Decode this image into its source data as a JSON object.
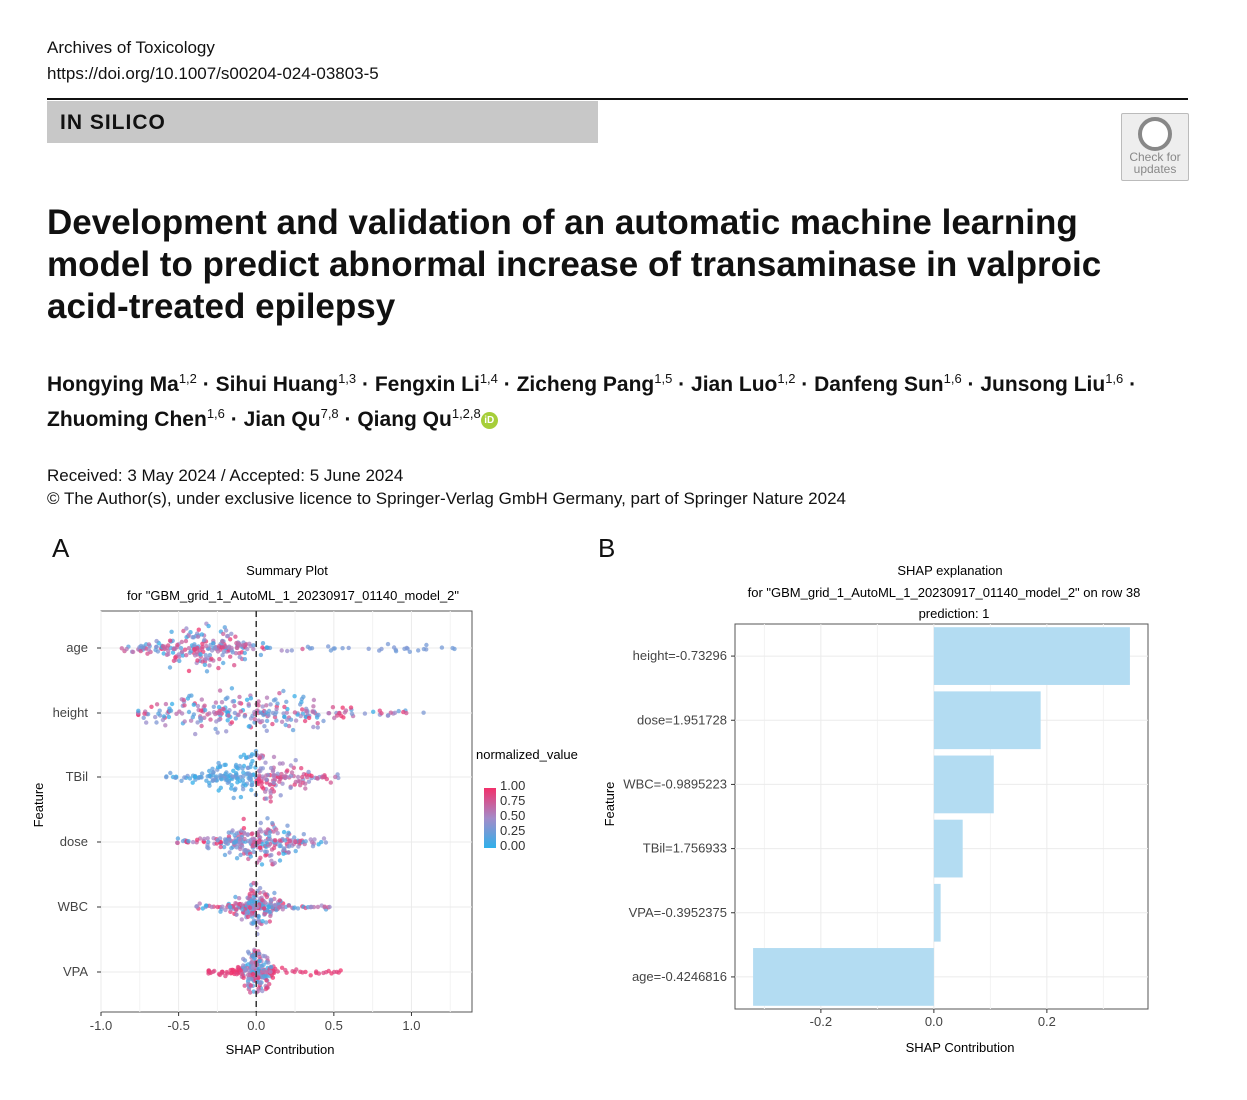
{
  "header": {
    "journal": "Archives of Toxicology",
    "doi": "https://doi.org/10.1007/s00204-024-03803-5"
  },
  "section": "IN SILICO",
  "check_updates": {
    "line1": "Check for",
    "line2": "updates"
  },
  "title": "Development and validation of an automatic machine learning model to predict abnormal increase of transaminase in valproic acid-treated epilepsy",
  "authors": [
    {
      "name": "Hongying Ma",
      "aff": "1,2"
    },
    {
      "name": "Sihui Huang",
      "aff": "1,3"
    },
    {
      "name": "Fengxin Li",
      "aff": "1,4"
    },
    {
      "name": "Zicheng Pang",
      "aff": "1,5"
    },
    {
      "name": "Jian Luo",
      "aff": "1,2"
    },
    {
      "name": "Danfeng Sun",
      "aff": "1,6"
    },
    {
      "name": "Junsong Liu",
      "aff": "1,6"
    },
    {
      "name": "Zhuoming Chen",
      "aff": "1,6"
    },
    {
      "name": "Jian Qu",
      "aff": "7,8"
    },
    {
      "name": "Qiang Qu",
      "aff": "1,2,8"
    }
  ],
  "orcid_label": "iD",
  "dates": "Received: 3 May 2024 / Accepted: 5 June 2024",
  "copyright": "© The Author(s), under exclusive licence to Springer-Verlag GmbH Germany, part of Springer Nature 2024",
  "panels": {
    "a": "A",
    "b": "B"
  },
  "chart_data": [
    {
      "type": "scatter",
      "subtype": "beeswarm",
      "title": "Summary Plot",
      "subtitle": "for \"GBM_grid_1_AutoML_1_20230917_01140_model_2\"",
      "xlabel": "SHAP Contribution",
      "ylabel": "Feature",
      "xlim": [
        -1.0,
        1.39
      ],
      "xticks": [
        "-1.0",
        "-0.5",
        "0.0",
        "0.5",
        "1.0"
      ],
      "features": [
        {
          "name": "age",
          "min": -0.88,
          "max": 1.29,
          "center": -0.35,
          "spread": 0.18,
          "tail": 0.9
        },
        {
          "name": "height",
          "min": -0.76,
          "max": 1.08,
          "center": -0.1,
          "spread": 0.35,
          "tail": 0.6
        },
        {
          "name": "TBil",
          "min": -0.58,
          "max": 0.53,
          "center": 0.0,
          "spread": 0.2,
          "tail": 0.2
        },
        {
          "name": "dose",
          "min": -0.53,
          "max": 0.45,
          "center": 0.02,
          "spread": 0.15,
          "tail": 0.2
        },
        {
          "name": "WBC",
          "min": -0.42,
          "max": 0.49,
          "center": 0.0,
          "spread": 0.08,
          "tail": 0.2
        },
        {
          "name": "VPA",
          "min": -0.32,
          "max": 0.58,
          "center": 0.0,
          "spread": 0.06,
          "tail": 0.25
        }
      ],
      "legend": {
        "title": "normalized_value",
        "labels": [
          "1.00",
          "0.75",
          "0.50",
          "0.25",
          "0.00"
        ],
        "position": "right",
        "low_color": "#2fb0ea",
        "mid_color": "#a48bc9",
        "high_color": "#f2316b"
      }
    },
    {
      "type": "bar",
      "orientation": "horizontal",
      "title": "SHAP explanation",
      "subtitle": "for \"GBM_grid_1_AutoML_1_20230917_01140_model_2\" on row 38",
      "subtitle2": "prediction: 1",
      "xlabel": "SHAP Contribution",
      "ylabel": "Feature",
      "xlim": [
        -0.352,
        0.379
      ],
      "xticks": [
        "-0.2",
        "0.0",
        "0.2"
      ],
      "categories": [
        "height=-0.73296",
        "dose=1.951728",
        "WBC=-0.9895223",
        "TBil=1.756933",
        "VPA=-0.3952375",
        "age=-0.4246816"
      ],
      "values": [
        0.347,
        0.189,
        0.106,
        0.051,
        0.012,
        -0.32
      ],
      "bar_color": "#b3dcf2"
    }
  ]
}
